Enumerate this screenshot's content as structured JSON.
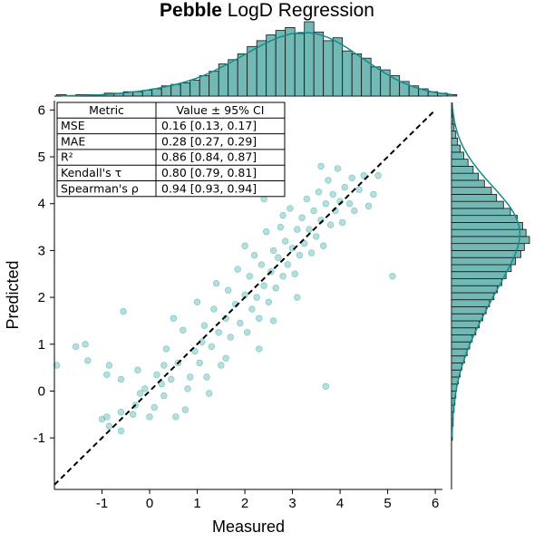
{
  "title": {
    "bold": "Pebble",
    "rest": " LogD Regression"
  },
  "colors": {
    "teal": "#128c8c",
    "hist_fill": "#72b9b5",
    "point": "#2aa3a0"
  },
  "chart_data": {
    "type": "scatter",
    "title": "Pebble LogD Regression",
    "xlabel": "Measured",
    "ylabel": "Predicted",
    "xlim": [
      -2.0,
      6.15
    ],
    "ylim": [
      -2.1,
      6.2
    ],
    "xticks": [
      -1,
      0,
      1,
      2,
      3,
      4,
      5,
      6
    ],
    "yticks": [
      -1,
      0,
      1,
      2,
      3,
      4,
      5,
      6
    ],
    "identity_line": true,
    "grid": false,
    "metrics_table": {
      "headers": [
        "Metric",
        "Value ± 95% CI"
      ],
      "rows": [
        [
          "MSE",
          "0.16 [0.13, 0.17]"
        ],
        [
          "MAE",
          "0.28 [0.27, 0.29]"
        ],
        [
          "R²",
          "0.86 [0.84, 0.87]"
        ],
        [
          "Kendall's τ",
          "0.80 [0.79, 0.81]"
        ],
        [
          "Spearman's ρ",
          "0.94 [0.93, 0.94]"
        ]
      ]
    },
    "points": [
      [
        -1.95,
        0.55
      ],
      [
        -1.55,
        0.95
      ],
      [
        -1.35,
        1.0
      ],
      [
        -1.3,
        0.65
      ],
      [
        -0.9,
        0.35
      ],
      [
        -0.85,
        0.55
      ],
      [
        -0.6,
        0.25
      ],
      [
        -0.55,
        1.7
      ],
      [
        -0.6,
        -0.45
      ],
      [
        -0.9,
        -0.55
      ],
      [
        -1.0,
        -0.6
      ],
      [
        -0.85,
        -0.75
      ],
      [
        -0.6,
        -0.85
      ],
      [
        -0.35,
        -0.5
      ],
      [
        -0.3,
        -0.3
      ],
      [
        -0.2,
        -0.05
      ],
      [
        -0.1,
        0.05
      ],
      [
        0.0,
        -0.55
      ],
      [
        0.1,
        -0.35
      ],
      [
        0.15,
        0.35
      ],
      [
        0.25,
        0.15
      ],
      [
        0.3,
        -0.1
      ],
      [
        0.35,
        0.9
      ],
      [
        0.5,
        1.55
      ],
      [
        0.45,
        0.25
      ],
      [
        0.6,
        0.6
      ],
      [
        0.55,
        -0.55
      ],
      [
        0.75,
        -0.4
      ],
      [
        0.8,
        0.05
      ],
      [
        0.95,
        0.85
      ],
      [
        1.05,
        0.6
      ],
      [
        1.1,
        1.05
      ],
      [
        1.15,
        1.4
      ],
      [
        1.2,
        0.3
      ],
      [
        1.3,
        0.95
      ],
      [
        1.35,
        1.75
      ],
      [
        1.45,
        1.25
      ],
      [
        1.5,
        0.55
      ],
      [
        1.6,
        1.55
      ],
      [
        1.65,
        2.15
      ],
      [
        1.7,
        1.15
      ],
      [
        1.8,
        1.85
      ],
      [
        1.85,
        2.6
      ],
      [
        1.9,
        1.45
      ],
      [
        2.0,
        2.05
      ],
      [
        2.05,
        1.25
      ],
      [
        2.1,
        2.45
      ],
      [
        2.15,
        1.75
      ],
      [
        2.2,
        2.9
      ],
      [
        2.25,
        2.0
      ],
      [
        2.3,
        1.55
      ],
      [
        2.35,
        2.7
      ],
      [
        2.4,
        2.25
      ],
      [
        2.45,
        3.4
      ],
      [
        2.5,
        1.9
      ],
      [
        2.55,
        2.55
      ],
      [
        2.6,
        3.0
      ],
      [
        2.65,
        2.2
      ],
      [
        2.7,
        2.85
      ],
      [
        2.75,
        3.5
      ],
      [
        2.8,
        2.45
      ],
      [
        2.85,
        3.2
      ],
      [
        2.9,
        2.7
      ],
      [
        2.95,
        3.9
      ],
      [
        3.0,
        3.05
      ],
      [
        3.05,
        2.5
      ],
      [
        3.1,
        3.45
      ],
      [
        3.15,
        2.9
      ],
      [
        3.2,
        3.7
      ],
      [
        3.25,
        3.15
      ],
      [
        3.3,
        4.1
      ],
      [
        3.35,
        3.45
      ],
      [
        3.4,
        2.95
      ],
      [
        3.45,
        3.85
      ],
      [
        3.5,
        3.3
      ],
      [
        3.55,
        4.25
      ],
      [
        3.6,
        3.65
      ],
      [
        3.65,
        3.1
      ],
      [
        3.7,
        4.0
      ],
      [
        3.75,
        4.5
      ],
      [
        3.8,
        3.55
      ],
      [
        3.85,
        4.2
      ],
      [
        3.9,
        3.85
      ],
      [
        3.95,
        4.75
      ],
      [
        4.0,
        4.05
      ],
      [
        4.05,
        3.6
      ],
      [
        4.1,
        4.35
      ],
      [
        4.2,
        4.0
      ],
      [
        4.25,
        4.55
      ],
      [
        4.3,
        3.85
      ],
      [
        4.4,
        4.3
      ],
      [
        4.5,
        4.6
      ],
      [
        4.6,
        3.95
      ],
      [
        4.7,
        4.2
      ],
      [
        4.8,
        4.6
      ],
      [
        5.1,
        2.45
      ],
      [
        3.6,
        4.8
      ],
      [
        2.4,
        4.1
      ],
      [
        3.7,
        0.1
      ],
      [
        2.8,
        3.75
      ],
      [
        1.0,
        1.9
      ],
      [
        1.4,
        2.3
      ],
      [
        0.7,
        1.3
      ],
      [
        2.0,
        3.1
      ],
      [
        2.3,
        0.9
      ],
      [
        1.6,
        0.7
      ],
      [
        3.1,
        2.0
      ],
      [
        2.6,
        1.5
      ],
      [
        0.3,
        0.55
      ],
      [
        -0.25,
        0.45
      ],
      [
        0.85,
        0.3
      ],
      [
        1.25,
        -0.05
      ]
    ],
    "top_histogram": {
      "bin_start": -1.95,
      "bin_width": 0.2,
      "counts": [
        1,
        0,
        1,
        1,
        1,
        2,
        2,
        3,
        3,
        4,
        5,
        7,
        8,
        9,
        11,
        14,
        17,
        22,
        25,
        29,
        34,
        38,
        42,
        45,
        47,
        43,
        51,
        44,
        38,
        40,
        31,
        29,
        26,
        20,
        18,
        14,
        10,
        7,
        5,
        3,
        2,
        1
      ],
      "kde": [
        0.2,
        0.3,
        0.4,
        0.6,
        0.9,
        1.3,
        1.8,
        2.5,
        3.2,
        4.1,
        5.2,
        6.5,
        8.0,
        9.7,
        11.8,
        14.3,
        17.2,
        20.5,
        24.0,
        27.6,
        31.3,
        34.8,
        38.0,
        40.7,
        42.6,
        43.6,
        43.5,
        42.4,
        40.2,
        37.0,
        33.0,
        28.6,
        24.1,
        19.7,
        15.6,
        11.9,
        8.8,
        6.3,
        4.3,
        2.8,
        1.7,
        1.0
      ]
    },
    "right_histogram": {
      "bin_start": -1.05,
      "bin_width": 0.15,
      "counts": [
        1,
        1,
        2,
        2,
        3,
        4,
        5,
        6,
        8,
        10,
        12,
        15,
        18,
        21,
        24,
        28,
        32,
        36,
        40,
        44,
        49,
        53,
        58,
        63,
        69,
        74,
        80,
        84,
        90,
        86,
        82,
        76,
        68,
        60,
        52,
        46,
        38,
        31,
        25,
        19,
        14,
        10,
        7,
        5,
        3,
        2,
        1,
        1
      ],
      "kde": [
        0.6,
        0.9,
        1.3,
        1.8,
        2.5,
        3.4,
        4.5,
        5.9,
        7.6,
        9.6,
        11.9,
        14.6,
        17.5,
        20.7,
        24.2,
        27.9,
        31.8,
        35.8,
        40.0,
        44.3,
        48.6,
        53.0,
        57.4,
        61.8,
        66.0,
        70.0,
        73.6,
        76.5,
        78.4,
        79.0,
        78.0,
        75.4,
        71.2,
        65.7,
        59.2,
        52.1,
        44.8,
        37.6,
        30.8,
        24.6,
        19.1,
        14.4,
        10.5,
        7.4,
        5.0,
        3.2,
        2.0,
        1.2
      ]
    }
  }
}
